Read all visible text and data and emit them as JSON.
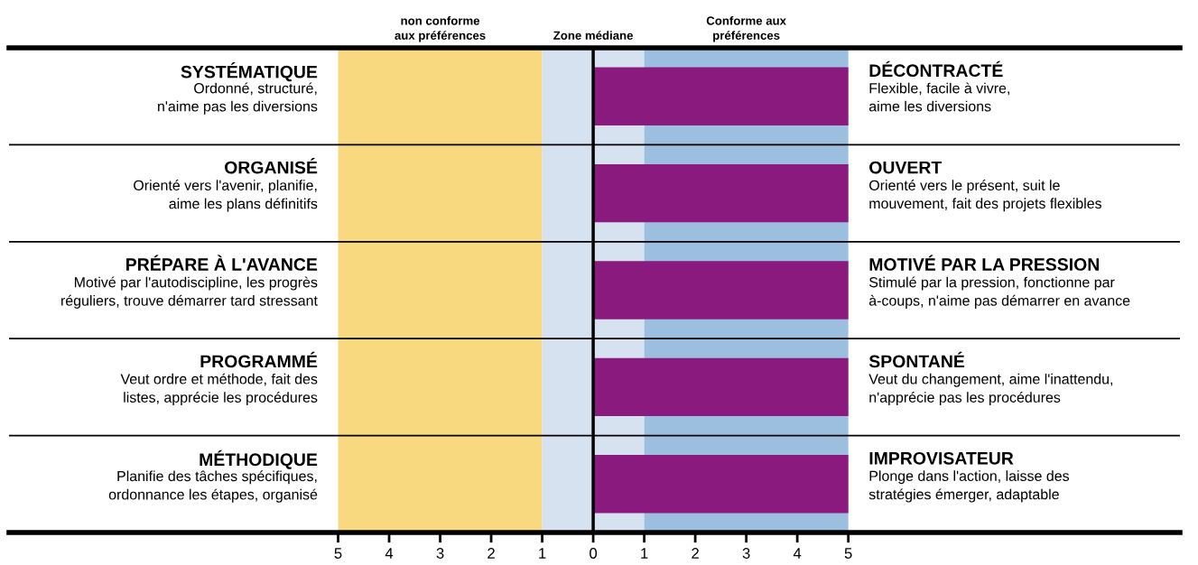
{
  "chart_data": {
    "type": "bar",
    "orientation": "horizontal",
    "categories": [
      "SYSTÉMATIQUE\nOrdonné, structuré,\nn'aime pas les diversions",
      "ORGANISÉ\nOrienté vers l'avenir, planifie,\naime les plans définitifs",
      "PRÉPARE À L'AVANCE\nMotivé par l'autodiscipline, les progrès\nréguliers, trouve démarrer tard stressant",
      "PROGRAMMÉ\nVeut ordre et méthode, fait des\nlistes, apprécie les procédures",
      "MÉTHODIQUE\nPlanifie des tâches spécifiques,\nordonnance les étapes, organisé"
    ],
    "values": [
      5,
      5,
      5,
      5,
      5
    ],
    "color": "#8b1a7e",
    "xlim": [
      -11.45,
      11.5
    ],
    "xticks": [
      {
        "value": -5,
        "label": "5"
      },
      {
        "value": -4,
        "label": "4"
      },
      {
        "value": -3,
        "label": "3"
      },
      {
        "value": -2,
        "label": "2"
      },
      {
        "value": -1,
        "label": "1"
      },
      0,
      1,
      2,
      3,
      4,
      5
    ],
    "bands": [
      {
        "axis": "x",
        "from": -5,
        "to": -1,
        "label": "non conforme\naux préférences",
        "color": "#f8d980"
      },
      {
        "axis": "x",
        "from": -1,
        "to": 1,
        "label": "Zone médiane",
        "color": "#d6e2f0"
      },
      {
        "axis": "x",
        "from": 1,
        "to": 5,
        "label": "Conforme aux\npréférences",
        "color": "#9dbfdf"
      }
    ],
    "ref_lines": [
      {
        "axis": "x",
        "value": 0,
        "color": "#000000"
      }
    ],
    "annotations": [
      "DÉCONTRACTÉ\nFlexible, facile à vivre,\naime les diversions",
      "OUVERT\nOrienté vers le présent, suit le\nmouvement, fait des projets flexibles",
      "MOTIVÉ PAR LA PRESSION\nStimulé par la pression, fonctionne par\nà-coups, n'aime pas démarrer en avance",
      "SPONTANÉ\nVeut du changement, aime l'inattendu,\nn'apprécie pas les procédures",
      "IMPROVISATEUR\nPlonge dans l'action, laisse des\nstratégies émerger, adaptable"
    ],
    "grid": false,
    "legend": false
  }
}
